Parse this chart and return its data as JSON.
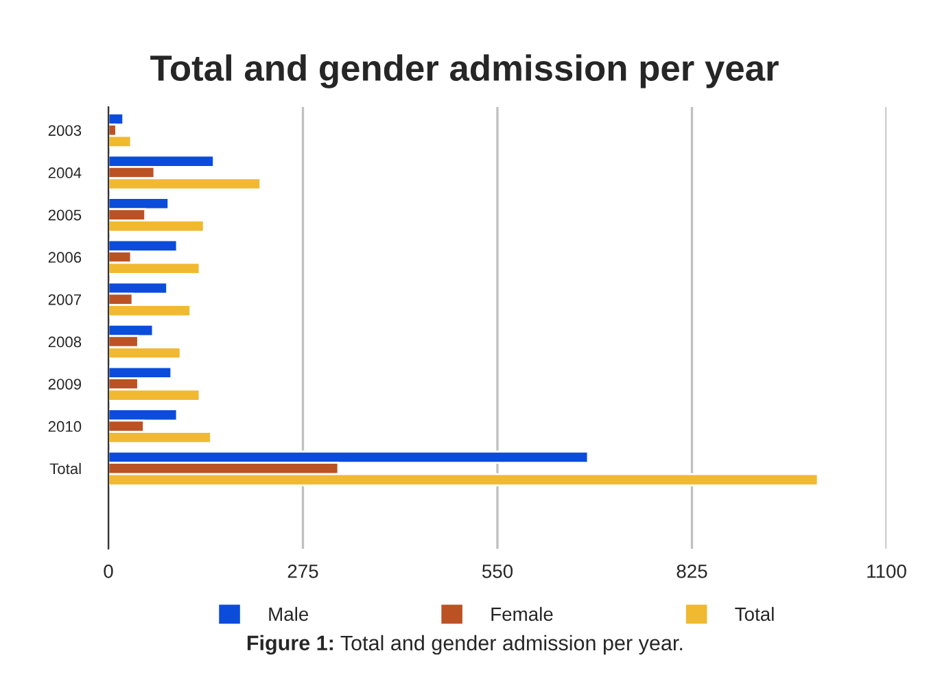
{
  "chart_data": {
    "type": "bar",
    "orientation": "horizontal",
    "title": "Total and gender admission per year",
    "categories": [
      "2003",
      "2004",
      "2005",
      "2006",
      "2007",
      "2008",
      "2009",
      "2010",
      "Total"
    ],
    "series": [
      {
        "name": "Male",
        "color": "#0b4cdb",
        "values": [
          21,
          149,
          85,
          97,
          83,
          63,
          89,
          97,
          678
        ]
      },
      {
        "name": "Female",
        "color": "#bb5224",
        "values": [
          11,
          65,
          52,
          32,
          34,
          42,
          42,
          50,
          325
        ]
      },
      {
        "name": "Total",
        "color": "#f0b930",
        "values": [
          32,
          215,
          135,
          129,
          116,
          102,
          129,
          145,
          1003
        ]
      }
    ],
    "xlim": [
      0,
      1100
    ],
    "xticks": [
      0,
      275,
      550,
      825,
      1100
    ],
    "grid": "x",
    "legend": "bottom",
    "annotations": [
      "Figure 1: Total and gender admission per year."
    ]
  }
}
